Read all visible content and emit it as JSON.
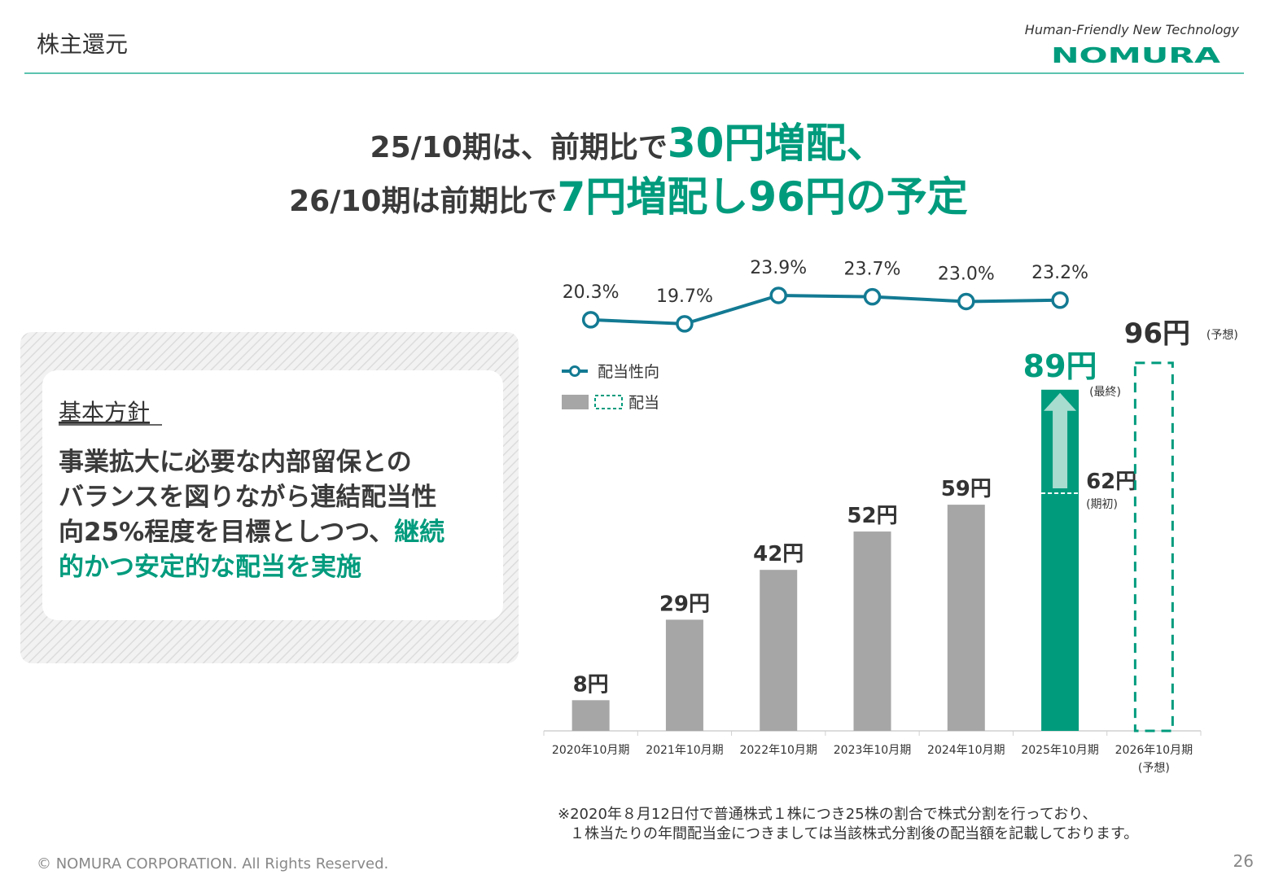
{
  "header": {
    "title": "株主還元",
    "tagline": "Human-Friendly New Technology",
    "logo": "NOMURA"
  },
  "headline": [
    [
      {
        "text": "25/10期は、前期比で"
      },
      {
        "text": "30円増配、",
        "highlight": true
      }
    ],
    [
      {
        "text": "26/10期は前期比で"
      },
      {
        "text": "7円増配し96円の予定",
        "highlight": true
      }
    ]
  ],
  "policy": {
    "title": "基本方針",
    "body": [
      [
        {
          "text": "事業拡大に必要な内部留保との"
        }
      ],
      [
        {
          "text": "バランスを図りながら連結配当性"
        }
      ],
      [
        {
          "text": "向25%程度を目標としつつ、"
        },
        {
          "text": "継続",
          "highlight": true
        }
      ],
      [
        {
          "text": "的かつ安定的な配当を実施",
          "highlight": true
        }
      ]
    ]
  },
  "chart_data": {
    "type": "bar",
    "categories": [
      "2020年10月期",
      "2021年10月期",
      "2022年10月期",
      "2023年10月期",
      "2024年10月期",
      "2025年10月期",
      "2026年10月期"
    ],
    "forecast_note": "(予想)",
    "series": [
      {
        "name": "配当",
        "color": "#a6a6a6",
        "values": [
          8,
          29,
          42,
          52,
          59,
          89,
          96
        ],
        "value_labels": [
          "8円",
          "29円",
          "42円",
          "52円",
          "59円",
          "89円",
          "96円"
        ],
        "bar_colors": [
          "#a6a6a6",
          "#a6a6a6",
          "#a6a6a6",
          "#a6a6a6",
          "#a6a6a6",
          "#009b7d",
          "#009b7d"
        ],
        "bar_styles": [
          "solid",
          "solid",
          "solid",
          "solid",
          "solid",
          "highlight",
          "dashed"
        ]
      },
      {
        "name": "配当性向",
        "type": "line",
        "axis": "y2",
        "color": "#137a93",
        "values": [
          20.3,
          19.7,
          23.9,
          23.7,
          23.0,
          23.2,
          null
        ],
        "value_labels": [
          "20.3%",
          "19.7%",
          "23.9%",
          "23.7%",
          "23.0%",
          "23.2%",
          null
        ]
      }
    ],
    "final_note": "(最終)",
    "initial_forecast": {
      "value": 62,
      "label": "62円",
      "note": "(期初)"
    },
    "ylim": [
      0,
      100
    ],
    "y2lim": [
      18,
      26
    ]
  },
  "footnote": [
    "※2020年８月12日付で普通株式１株につき25株の割合で株式分割を行っており、",
    "１株当たりの年間配当金につきましては当該株式分割後の配当額を記載しております。"
  ],
  "footer": {
    "copyright": "© NOMURA CORPORATION. All Rights Reserved.",
    "page": "26"
  }
}
